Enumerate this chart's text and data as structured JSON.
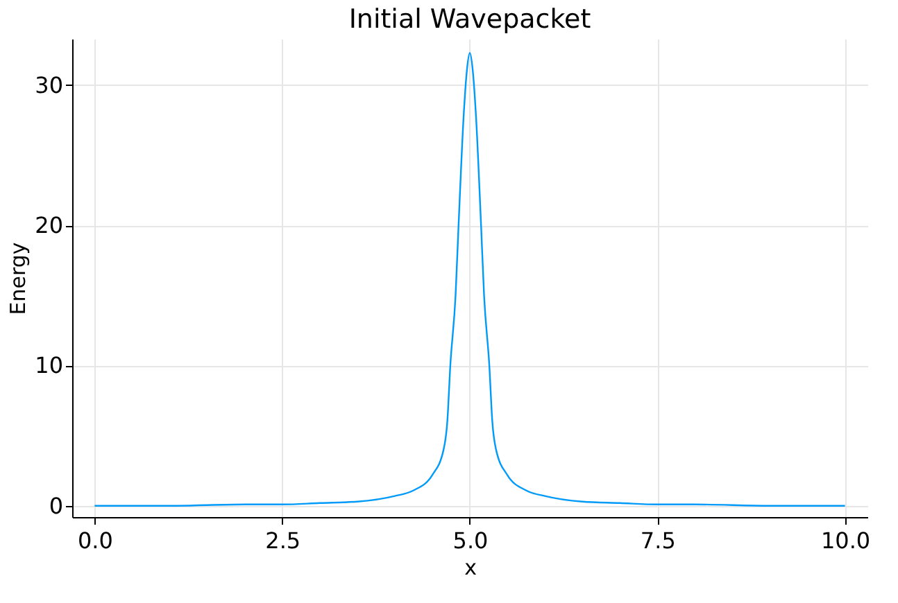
{
  "chart_data": {
    "type": "line",
    "title": "Initial Wavepacket",
    "xlabel": "x",
    "ylabel": "Energy",
    "x": [
      0,
      1,
      2,
      2.5,
      3,
      3.5,
      4,
      4.25,
      4.5,
      4.65,
      4.7,
      4.74,
      4.81,
      4.85,
      4.92,
      4.96,
      5,
      5.04,
      5.08,
      5.15,
      5.19,
      5.26,
      5.3,
      5.35,
      5.5,
      5.75,
      6,
      6.5,
      7,
      7.5,
      8,
      9,
      10
    ],
    "series": [
      {
        "color": "#009af9",
        "values": [
          0,
          0,
          0.1,
          0.1,
          0.2,
          0.3,
          0.7,
          1.1,
          2.2,
          4,
          6,
          10,
          15,
          20,
          28,
          31,
          32.3,
          31,
          28,
          20,
          15,
          10,
          6,
          4,
          2.2,
          1.1,
          0.7,
          0.3,
          0.2,
          0.1,
          0.1,
          0,
          0
        ]
      }
    ],
    "xlim": [
      -0.3,
      10.3
    ],
    "ylim": [
      -0.8,
      33.3
    ],
    "xticks": [
      {
        "value": 0,
        "label": "0.0"
      },
      {
        "value": 2.5,
        "label": "2.5"
      },
      {
        "value": 5,
        "label": "5.0"
      },
      {
        "value": 7.5,
        "label": "7.5"
      },
      {
        "value": 10,
        "label": "10.0"
      }
    ],
    "yticks": [
      0,
      10,
      20,
      30
    ],
    "grid": true,
    "marker": "none",
    "line_style": "solid"
  }
}
